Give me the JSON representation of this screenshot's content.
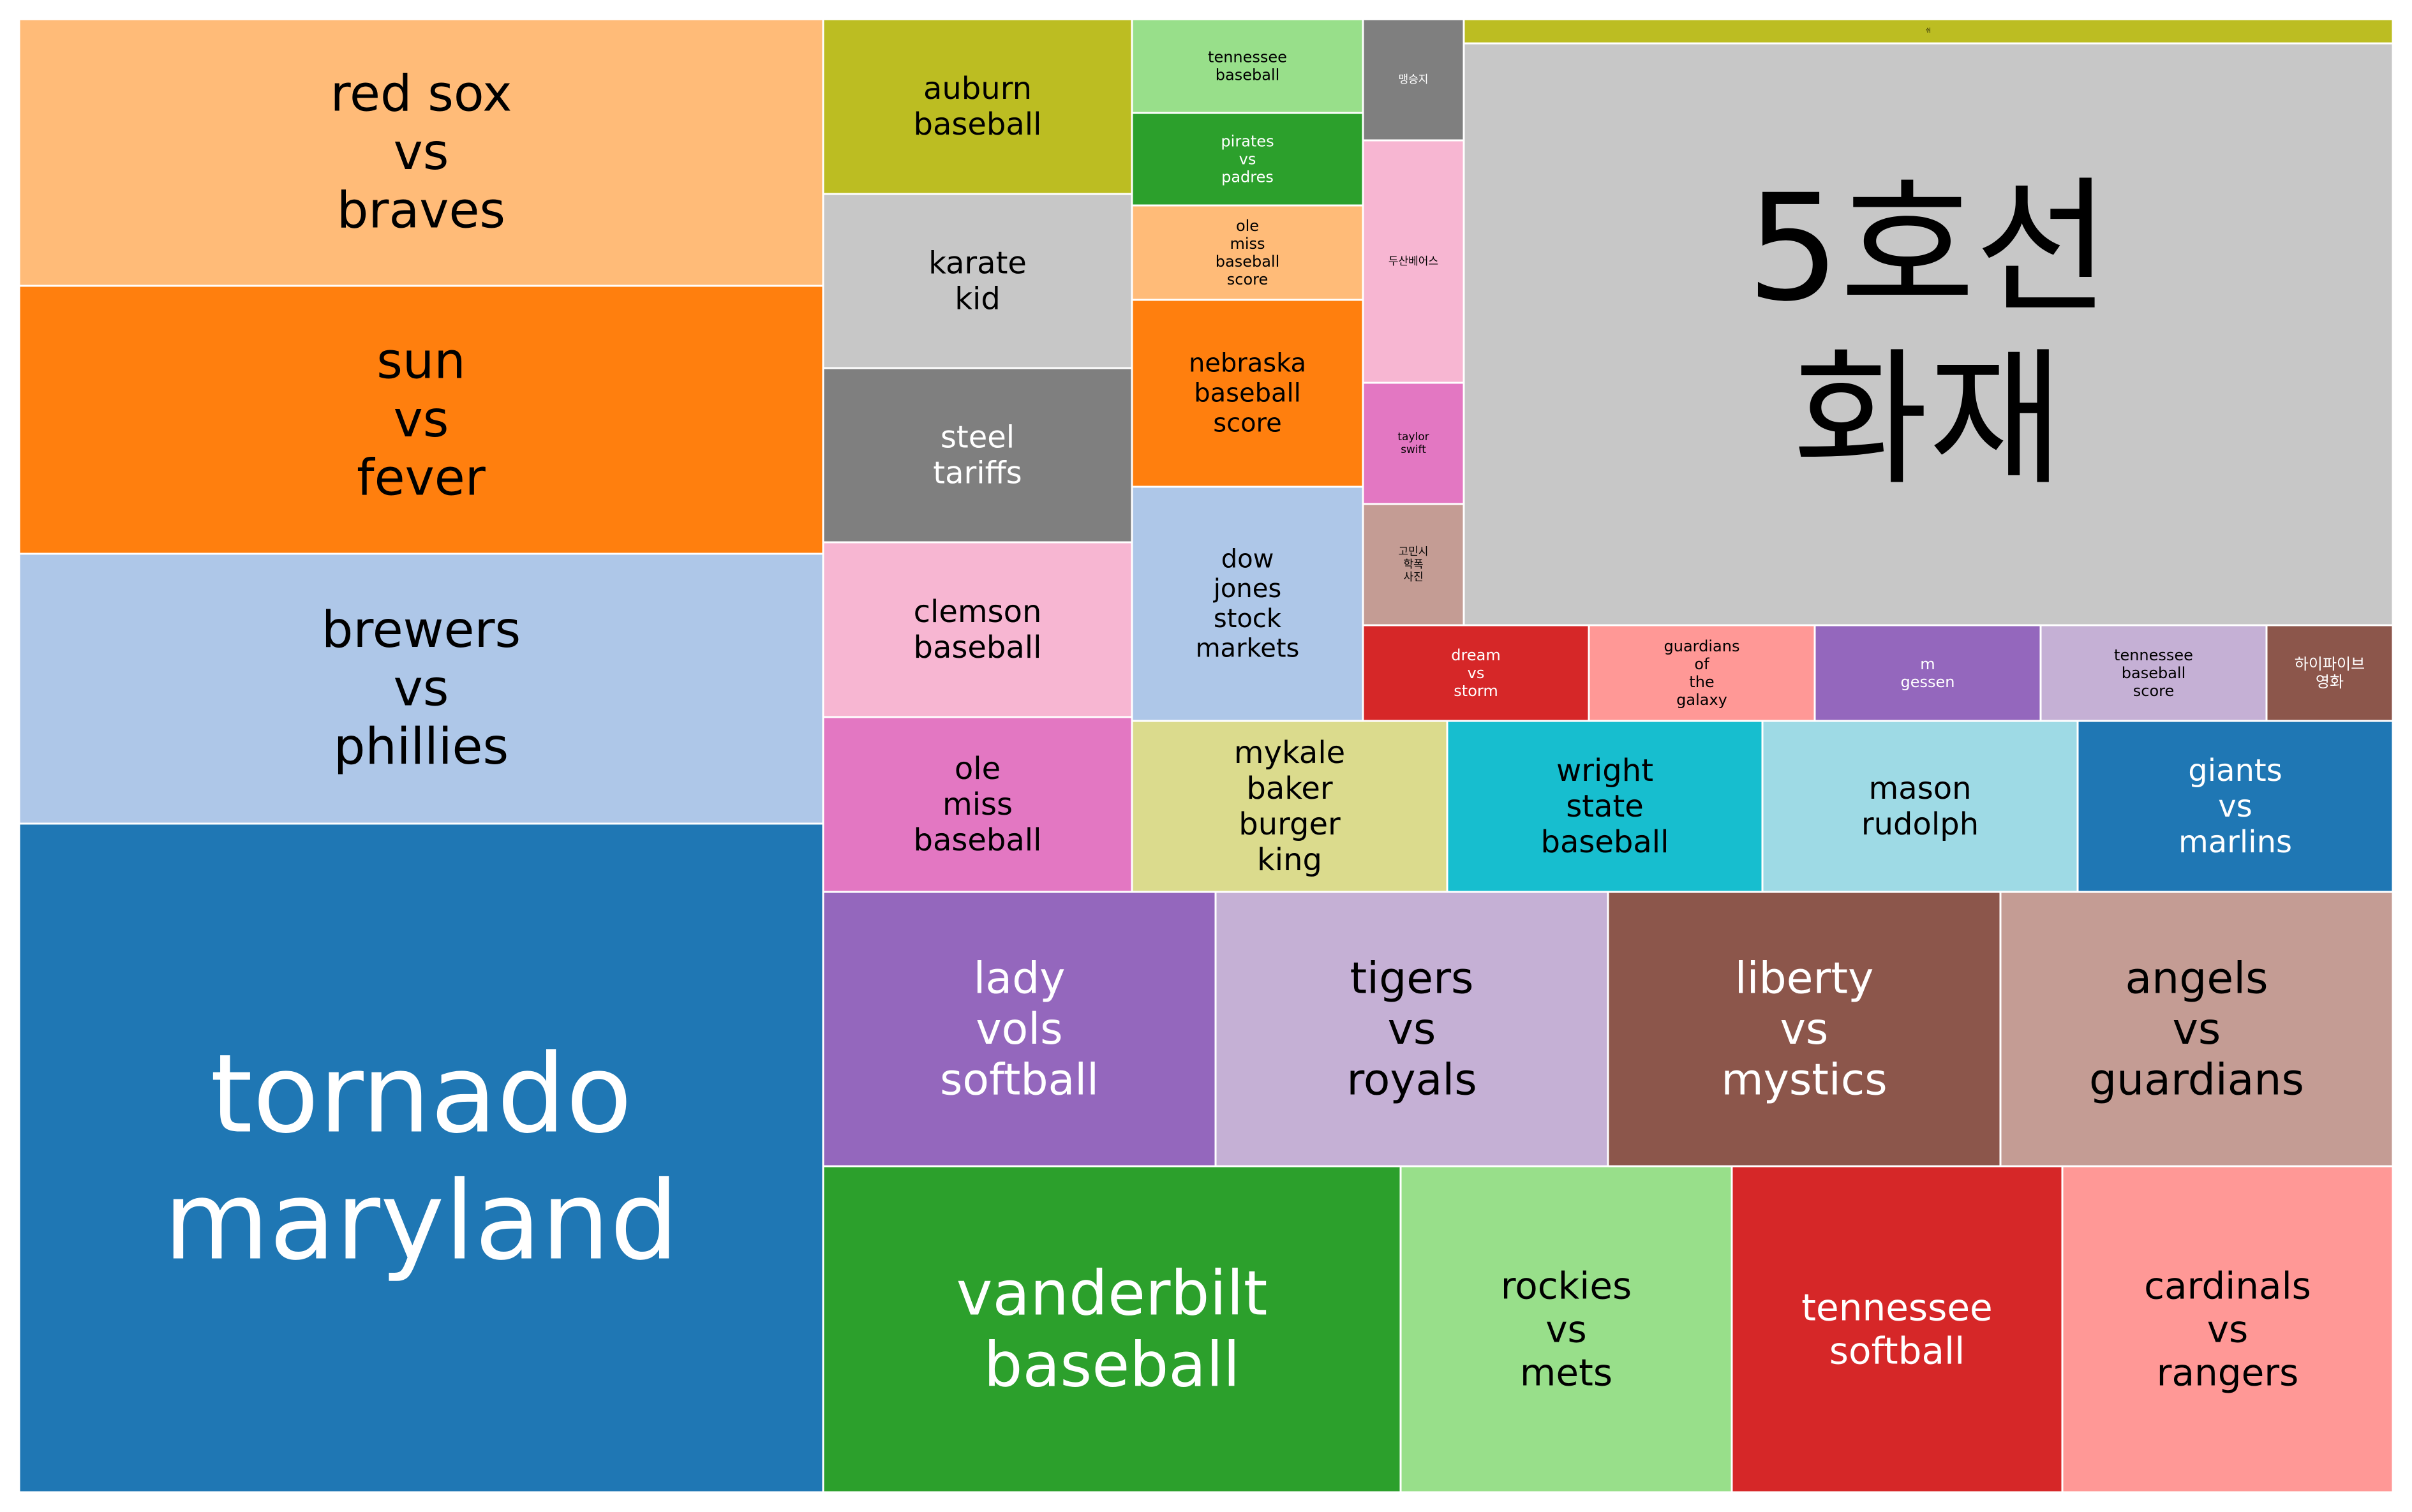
{
  "chart_data": {
    "type": "treemap",
    "title": "",
    "items": [
      {
        "label": "tornado\nmaryland",
        "color": "#1f77b4",
        "text_color": "#ffffff"
      },
      {
        "label": "red sox\nvs\nbraves",
        "color": "#ffbb78",
        "text_color": "#000000"
      },
      {
        "label": "sun\nvs\nfever",
        "color": "#ff7f0e",
        "text_color": "#000000"
      },
      {
        "label": "brewers\nvs\nphillies",
        "color": "#aec7e8",
        "text_color": "#000000"
      },
      {
        "label": "auburn\nbaseball",
        "color": "#bcbd22",
        "text_color": "#000000"
      },
      {
        "label": "karate\nkid",
        "color": "#c7c7c7",
        "text_color": "#000000"
      },
      {
        "label": "steel\ntariffs",
        "color": "#7f7f7f",
        "text_color": "#ffffff"
      },
      {
        "label": "clemson\nbaseball",
        "color": "#f7b6d2",
        "text_color": "#000000"
      },
      {
        "label": "ole\nmiss\nbaseball",
        "color": "#e377c2",
        "text_color": "#000000"
      },
      {
        "label": "tennessee\nbaseball",
        "color": "#98df8a",
        "text_color": "#000000"
      },
      {
        "label": "pirates\nvs\npadres",
        "color": "#2ca02c",
        "text_color": "#ffffff"
      },
      {
        "label": "ole\nmiss\nbaseball\nscore",
        "color": "#ffbb78",
        "text_color": "#000000"
      },
      {
        "label": "nebraska\nbaseball\nscore",
        "color": "#ff7f0e",
        "text_color": "#000000"
      },
      {
        "label": "dow\njones\nstock\nmarkets",
        "color": "#aec7e8",
        "text_color": "#000000"
      },
      {
        "label": "맹승지",
        "color": "#7f7f7f",
        "text_color": "#ffffff"
      },
      {
        "label": "두산베어스",
        "color": "#f7b6d2",
        "text_color": "#000000"
      },
      {
        "label": "taylor\nswift",
        "color": "#e377c2",
        "text_color": "#000000"
      },
      {
        "label": "고민시\n학폭\n사진",
        "color": "#c49c94",
        "text_color": "#000000"
      },
      {
        "label": "쉬",
        "color": "#bcbd22",
        "text_color": "#000000"
      },
      {
        "label": "5호선\n화재",
        "color": "#c7c7c7",
        "text_color": "#000000"
      },
      {
        "label": "dream\nvs\nstorm",
        "color": "#d62728",
        "text_color": "#ffffff"
      },
      {
        "label": "guardians\nof\nthe\ngalaxy",
        "color": "#ff9896",
        "text_color": "#000000"
      },
      {
        "label": "m\ngessen",
        "color": "#9467bd",
        "text_color": "#ffffff"
      },
      {
        "label": "tennessee\nbaseball\nscore",
        "color": "#c5b0d5",
        "text_color": "#000000"
      },
      {
        "label": "하이파이브\n영화",
        "color": "#8c564b",
        "text_color": "#ffffff"
      },
      {
        "label": "mykale\nbaker\nburger\nking",
        "color": "#dbdb8d",
        "text_color": "#000000"
      },
      {
        "label": "wright\nstate\nbaseball",
        "color": "#17becf",
        "text_color": "#000000"
      },
      {
        "label": "mason\nrudolph",
        "color": "#9edae5",
        "text_color": "#000000"
      },
      {
        "label": "giants\nvs\nmarlins",
        "color": "#1f77b4",
        "text_color": "#ffffff"
      },
      {
        "label": "lady\nvols\nsoftball",
        "color": "#9467bd",
        "text_color": "#ffffff"
      },
      {
        "label": "tigers\nvs\nroyals",
        "color": "#c5b0d5",
        "text_color": "#000000"
      },
      {
        "label": "liberty\nvs\nmystics",
        "color": "#8c564b",
        "text_color": "#ffffff"
      },
      {
        "label": "angels\nvs\nguardians",
        "color": "#c49c94",
        "text_color": "#000000"
      },
      {
        "label": "vanderbilt\nbaseball",
        "color": "#2ca02c",
        "text_color": "#ffffff"
      },
      {
        "label": "rockies\nvs\nmets",
        "color": "#98df8a",
        "text_color": "#000000"
      },
      {
        "label": "tennessee\nsoftball",
        "color": "#d62728",
        "text_color": "#ffffff"
      },
      {
        "label": "cardinals\nvs\nrangers",
        "color": "#ff9896",
        "text_color": "#000000"
      }
    ]
  }
}
